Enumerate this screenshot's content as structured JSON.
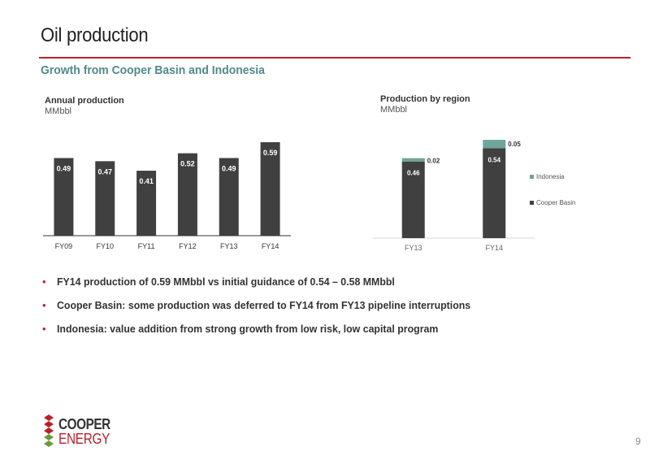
{
  "slide": {
    "title": "Oil production",
    "subtitle": "Growth from Cooper Basin and Indonesia",
    "page_number": "9"
  },
  "annual_chart_header": {
    "title": "Annual production",
    "unit": "MMbbl"
  },
  "region_chart_header": {
    "title": "Production by region",
    "unit": "MMbbl"
  },
  "bullets": [
    "FY14 production of 0.59 MMbbl vs initial guidance of 0.54 – 0.58 MMbbl",
    "Cooper Basin: some production was deferred to FY14 from FY13 pipeline interruptions",
    "Indonesia: value addition from strong growth from low risk, low capital program"
  ],
  "logo": {
    "line1": "COOPER",
    "line2": "ENERGY"
  },
  "colors": {
    "accent_red": "#b8202a",
    "bar_dark": "#404040",
    "indonesia": "#6fa59b",
    "subtitle_teal": "#4f8a8b"
  },
  "chart_data": [
    {
      "type": "bar",
      "title": "Annual production",
      "ylabel": "MMbbl",
      "categories": [
        "FY09",
        "FY10",
        "FY11",
        "FY12",
        "FY13",
        "FY14"
      ],
      "values": [
        0.49,
        0.47,
        0.41,
        0.52,
        0.49,
        0.59
      ],
      "data_labels": [
        "0.49",
        "0.47",
        "0.41",
        "0.52",
        "0.49",
        "0.59"
      ],
      "ylim": [
        0,
        0.6
      ],
      "grid": false
    },
    {
      "type": "bar",
      "stacked": true,
      "title": "Production by region",
      "ylabel": "MMbbl",
      "categories": [
        "FY13",
        "FY14"
      ],
      "series": [
        {
          "name": "Cooper Basin",
          "values": [
            0.46,
            0.54
          ],
          "labels": [
            "0.46",
            "0.54"
          ],
          "color": "#404040"
        },
        {
          "name": "Indonesia",
          "values": [
            0.02,
            0.05
          ],
          "labels": [
            "0.02",
            "0.05"
          ],
          "color": "#6fa59b"
        }
      ],
      "legend": "right",
      "ylim": [
        0,
        0.6
      ],
      "grid": false
    }
  ]
}
